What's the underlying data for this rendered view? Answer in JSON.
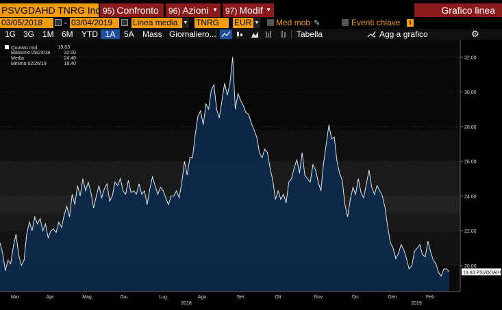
{
  "header": {
    "ticker": "PSVGDAHD TNRG Ind",
    "buttons": [
      {
        "num": "95)",
        "label": "Confronto"
      },
      {
        "num": "96)",
        "label": "Azioni"
      },
      {
        "num": "97)",
        "label": "Modif"
      }
    ],
    "title": "Grafico linea"
  },
  "controls": {
    "start_date": "03/05/2018",
    "dash": "-",
    "end_date": "03/04/2019",
    "study": "Linea media",
    "field": "TNRG",
    "currency": "EUR",
    "med_mob": "Med mob",
    "eventi": "Eventi chiave"
  },
  "toolbar": {
    "ranges": [
      "1G",
      "3G",
      "1M",
      "6M",
      "YTD",
      "1A",
      "5A",
      "Mass"
    ],
    "selected_range": "1A",
    "frequency": "Giornaliero...",
    "tabella": "Tabella",
    "agg": "Agg a grafico"
  },
  "legend": {
    "rows": [
      {
        "label": "Quotato mid",
        "value": "19.63"
      },
      {
        "label": "Massimo 09/24/18",
        "value": "32.00"
      },
      {
        "label": "Media",
        "value": "24.40"
      },
      {
        "label": "Minimo 02/26/19",
        "value": "19.40"
      }
    ]
  },
  "colors": {
    "orange": "#f39c12",
    "red": "#8b1a1a",
    "selected": "#1f4e9e",
    "fill": "#0d2a4a"
  },
  "chart_data": {
    "type": "area",
    "ylim": [
      18.5,
      33
    ],
    "yticks": [
      "20.00",
      "22.00",
      "24.00",
      "26.00",
      "28.00",
      "30.00",
      "32.00"
    ],
    "months": [
      "Mar",
      "Apr",
      "Mag",
      "Giu",
      "Lug",
      "Ago",
      "Set",
      "Ott",
      "Nov",
      "Dic",
      "Gen",
      "Feb"
    ],
    "years": [
      "2018",
      "2019"
    ],
    "last_label": "19.63 PSVGDAHD",
    "series": [
      {
        "name": "PSVGDAHD",
        "values": [
          21.3,
          20.7,
          19.7,
          20.3,
          20.1,
          21.1,
          21.8,
          20.6,
          20.0,
          20.3,
          21.8,
          22.5,
          22.0,
          22.8,
          22.4,
          22.7,
          22.0,
          22.4,
          21.6,
          22.0,
          22.1,
          21.9,
          22.5,
          22.2,
          22.9,
          23.4,
          22.8,
          24.1,
          23.5,
          24.6,
          24.0,
          25.0,
          24.3,
          24.8,
          24.2,
          23.3,
          24.0,
          24.6,
          23.9,
          24.4,
          24.7,
          23.7,
          24.0,
          24.8,
          24.6,
          25.0,
          24.3,
          24.1,
          24.9,
          24.2,
          24.3,
          24.1,
          24.7,
          24.1,
          24.3,
          23.5,
          24.4,
          25.1,
          24.6,
          24.1,
          24.5,
          24.3,
          23.9,
          23.5,
          24.0,
          24.0,
          24.3,
          23.9,
          24.8,
          26.0,
          25.2,
          26.2,
          26.2,
          27.5,
          28.6,
          28.9,
          28.1,
          29.3,
          29.0,
          30.1,
          30.4,
          29.0,
          28.5,
          29.5,
          30.5,
          29.8,
          30.5,
          32.0,
          29.0,
          29.9,
          29.5,
          29.2,
          28.8,
          28.7,
          28.2,
          27.8,
          27.4,
          26.5,
          26.2,
          26.7,
          26.5,
          25.6,
          24.9,
          23.8,
          24.3,
          23.8,
          24.1,
          23.6,
          24.8,
          25.0,
          25.6,
          26.1,
          25.3,
          26.5,
          25.2,
          25.0,
          24.8,
          25.8,
          25.5,
          24.8,
          24.3,
          25.9,
          27.0,
          28.1,
          27.3,
          27.4,
          26.0,
          25.3,
          24.9,
          23.5,
          22.8,
          23.8,
          24.5,
          24.1,
          25.0,
          24.2,
          23.9,
          24.7,
          25.5,
          24.5,
          24.1,
          24.6,
          24.3,
          24.0,
          23.3,
          22.2,
          21.3,
          21.0,
          20.4,
          20.7,
          21.2,
          20.9,
          20.4,
          19.8,
          20.0,
          20.8,
          21.0,
          21.2,
          20.6,
          20.5,
          21.4,
          20.8,
          20.3,
          20.1,
          19.6,
          19.4,
          19.8,
          19.8,
          19.63
        ]
      }
    ]
  }
}
